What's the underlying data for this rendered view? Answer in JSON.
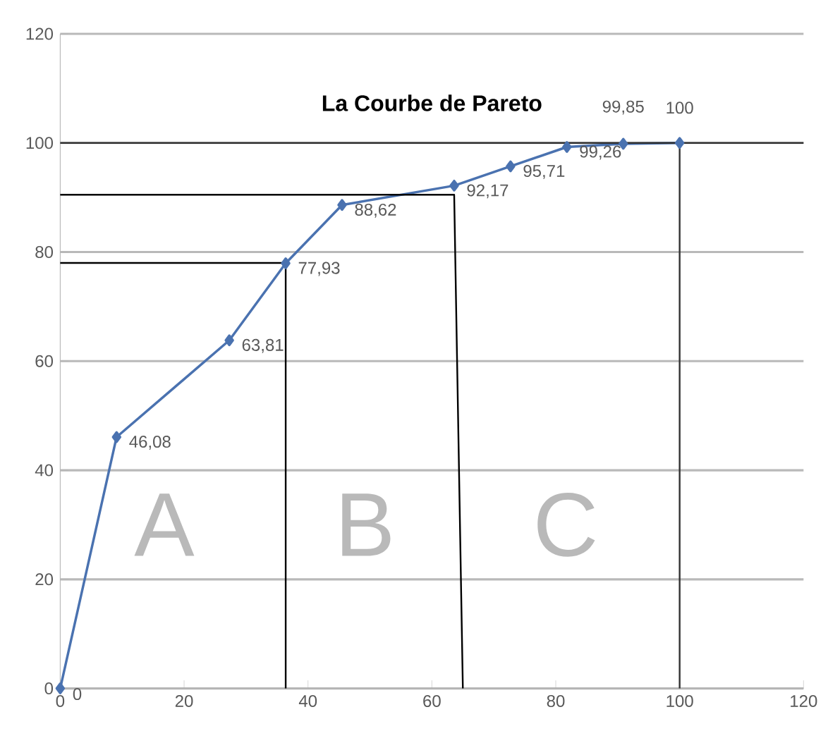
{
  "chart_data": {
    "type": "line",
    "title": "La Courbe de Pareto",
    "xlim": [
      0,
      120
    ],
    "ylim": [
      0,
      120
    ],
    "xticks": [
      0,
      20,
      40,
      60,
      80,
      100,
      120
    ],
    "yticks": [
      0,
      20,
      40,
      60,
      80,
      100,
      120
    ],
    "grid": "y",
    "series": [
      {
        "color": "#4a72b0",
        "marker": "diamond",
        "x": [
          0,
          9.1,
          27.3,
          36.4,
          45.5,
          63.6,
          72.7,
          81.8,
          90.9,
          100
        ],
        "values": [
          0,
          46.08,
          63.81,
          77.93,
          88.62,
          92.17,
          95.71,
          99.26,
          99.85,
          100
        ],
        "value_labels": [
          "0",
          "46,08",
          "63,81",
          "77,93",
          "88,62",
          "92,17",
          "95,71",
          "99,26",
          "99,85",
          "100"
        ]
      },
      {
        "type": "line",
        "color": "#000000",
        "marker": "none",
        "x": [
          0,
          36.4,
          36.4
        ],
        "values": [
          78,
          78,
          0
        ]
      },
      {
        "type": "line",
        "color": "#000000",
        "marker": "none",
        "x": [
          0,
          63.6,
          65
        ],
        "values": [
          90.5,
          90.5,
          0
        ]
      },
      {
        "type": "line",
        "color": "#333333",
        "marker": "none",
        "x": [
          0,
          120
        ],
        "values": [
          100,
          100
        ]
      },
      {
        "type": "line",
        "color": "#333333",
        "marker": "none",
        "x": [
          100,
          100
        ],
        "values": [
          100,
          0
        ]
      }
    ],
    "annotations": [
      "A",
      "B",
      "C"
    ]
  }
}
